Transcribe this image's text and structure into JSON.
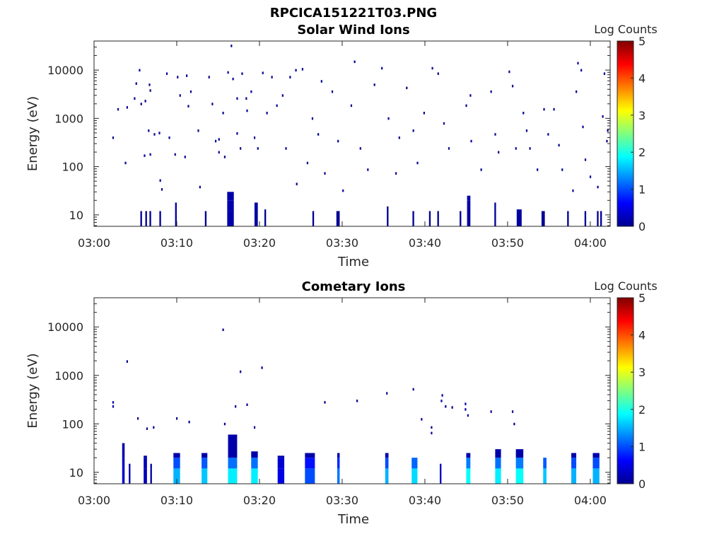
{
  "figure_title": "RPCICA151221T03.PNG",
  "chart_data": [
    {
      "type": "heatmap",
      "title": "Solar Wind Ions",
      "xlabel": "Time",
      "ylabel": "Energy (eV)",
      "colorbar_label": "Log Counts",
      "colorbar_ticks": [
        "0",
        "1",
        "2",
        "3",
        "4",
        "5"
      ],
      "clim": [
        0,
        5
      ],
      "colormap": "jet",
      "x_unit": "minutes after 03:00",
      "xlim": [
        0,
        62.4
      ],
      "ylim": [
        5.8,
        40000
      ],
      "yscale": "log",
      "xticks": [
        0,
        10,
        20,
        30,
        40,
        50,
        60
      ],
      "xtick_labels": [
        "03:00",
        "03:10",
        "03:20",
        "03:30",
        "03:40",
        "03:50",
        "04:00"
      ],
      "yticks": [
        10,
        100,
        1000,
        10000
      ],
      "ytick_labels": [
        "10",
        "100",
        "1000",
        "10000"
      ],
      "points_format": "[time_min, energy_eV, log_counts]",
      "points": [
        [
          2.3,
          400,
          0.1
        ],
        [
          2.9,
          1550,
          0.1
        ],
        [
          4.0,
          1700,
          0.1
        ],
        [
          3.8,
          120,
          0.1
        ],
        [
          4.9,
          2600,
          0.1
        ],
        [
          5.5,
          10000,
          0.1
        ],
        [
          5.1,
          5300,
          0.1
        ],
        [
          5.7,
          2000,
          0.1
        ],
        [
          6.2,
          2300,
          0.1
        ],
        [
          6.7,
          5000,
          0.1
        ],
        [
          6.8,
          3800,
          0.1
        ],
        [
          6.1,
          170,
          0.1
        ],
        [
          6.8,
          180,
          0.1
        ],
        [
          6.6,
          560,
          0.1
        ],
        [
          7.3,
          470,
          0.1
        ],
        [
          7.9,
          500,
          0.1
        ],
        [
          8.0,
          52,
          0.1
        ],
        [
          8.2,
          34,
          0.1
        ],
        [
          8.8,
          8500,
          0.1
        ],
        [
          9.1,
          400,
          0.1
        ],
        [
          10.1,
          7200,
          0.1
        ],
        [
          10.4,
          3000,
          0.1
        ],
        [
          9.8,
          180,
          0.1
        ],
        [
          11.0,
          160,
          0.1
        ],
        [
          11.2,
          7700,
          0.1
        ],
        [
          11.4,
          1800,
          0.1
        ],
        [
          11.7,
          3600,
          0.1
        ],
        [
          12.6,
          560,
          0.1
        ],
        [
          12.8,
          38,
          0.1
        ],
        [
          13.9,
          7200,
          0.1
        ],
        [
          14.3,
          2000,
          0.1
        ],
        [
          14.7,
          340,
          0.1
        ],
        [
          15.1,
          370,
          0.1
        ],
        [
          15.6,
          1300,
          0.1
        ],
        [
          15.1,
          200,
          0.1
        ],
        [
          15.8,
          160,
          0.1
        ],
        [
          16.2,
          9000,
          0.1
        ],
        [
          16.6,
          32000,
          0.1
        ],
        [
          16.8,
          6600,
          0.1
        ],
        [
          17.3,
          2600,
          0.1
        ],
        [
          17.3,
          490,
          0.1
        ],
        [
          17.7,
          240,
          0.1
        ],
        [
          17.9,
          8500,
          0.1
        ],
        [
          18.4,
          2600,
          0.1
        ],
        [
          18.5,
          1450,
          0.1
        ],
        [
          19.0,
          3600,
          0.1
        ],
        [
          19.4,
          400,
          0.1
        ],
        [
          19.8,
          240,
          0.1
        ],
        [
          20.4,
          8800,
          0.1
        ],
        [
          20.9,
          1300,
          0.1
        ],
        [
          21.5,
          7200,
          0.1
        ],
        [
          22.1,
          1850,
          0.1
        ],
        [
          22.8,
          3000,
          0.1
        ],
        [
          23.2,
          240,
          0.1
        ],
        [
          23.7,
          7200,
          0.1
        ],
        [
          24.4,
          10000,
          0.1
        ],
        [
          25.2,
          10500,
          0.1
        ],
        [
          24.5,
          44,
          0.1
        ],
        [
          25.8,
          120,
          0.1
        ],
        [
          26.4,
          1000,
          0.1
        ],
        [
          27.1,
          470,
          0.1
        ],
        [
          27.5,
          5900,
          0.1
        ],
        [
          27.9,
          73,
          0.1
        ],
        [
          28.8,
          3600,
          0.1
        ],
        [
          29.5,
          340,
          0.1
        ],
        [
          30.1,
          32,
          0.1
        ],
        [
          31.1,
          1850,
          0.1
        ],
        [
          31.5,
          15000,
          0.1
        ],
        [
          32.2,
          240,
          0.1
        ],
        [
          33.1,
          87,
          0.1
        ],
        [
          33.9,
          5000,
          0.1
        ],
        [
          34.8,
          11000,
          0.1
        ],
        [
          35.6,
          1000,
          0.1
        ],
        [
          36.5,
          73,
          0.1
        ],
        [
          36.9,
          400,
          0.1
        ],
        [
          37.8,
          4300,
          0.1
        ],
        [
          38.6,
          560,
          0.1
        ],
        [
          39.1,
          120,
          0.1
        ],
        [
          39.9,
          1300,
          0.1
        ],
        [
          40.9,
          11000,
          0.1
        ],
        [
          41.6,
          8500,
          0.1
        ],
        [
          42.3,
          790,
          0.1
        ],
        [
          42.9,
          240,
          0.1
        ],
        [
          45.0,
          1850,
          0.1
        ],
        [
          45.5,
          3000,
          0.1
        ],
        [
          45.6,
          340,
          0.1
        ],
        [
          46.8,
          87,
          0.1
        ],
        [
          48.0,
          3600,
          0.1
        ],
        [
          48.5,
          470,
          0.1
        ],
        [
          48.9,
          200,
          0.1
        ],
        [
          50.2,
          9300,
          0.1
        ],
        [
          50.6,
          4700,
          0.1
        ],
        [
          51.0,
          240,
          0.1
        ],
        [
          51.9,
          1300,
          0.1
        ],
        [
          52.3,
          560,
          0.1
        ],
        [
          52.7,
          240,
          0.1
        ],
        [
          53.6,
          87,
          0.1
        ],
        [
          54.4,
          1550,
          0.1
        ],
        [
          54.9,
          470,
          0.1
        ],
        [
          55.6,
          1550,
          0.1
        ],
        [
          56.2,
          280,
          0.1
        ],
        [
          56.6,
          87,
          0.1
        ],
        [
          57.9,
          32,
          0.1
        ],
        [
          58.5,
          14000,
          0.1
        ],
        [
          58.9,
          10000,
          0.1
        ],
        [
          58.3,
          3600,
          0.1
        ],
        [
          59.1,
          670,
          0.1
        ],
        [
          59.4,
          140,
          0.1
        ],
        [
          60.0,
          62,
          0.1
        ],
        [
          60.9,
          38,
          0.1
        ],
        [
          61.5,
          1100,
          0.1
        ],
        [
          61.7,
          8500,
          0.1
        ],
        [
          62.0,
          340,
          0.1
        ],
        [
          62.1,
          560,
          0.1
        ]
      ],
      "columns_format": "[t_start_min, t_end_min, top_energy_eV, max_log_counts]",
      "columns": [
        [
          5.6,
          5.8,
          12,
          0.1
        ],
        [
          6.2,
          6.4,
          12,
          0.1
        ],
        [
          6.7,
          6.9,
          12,
          0.1
        ],
        [
          7.9,
          8.1,
          12,
          0.1
        ],
        [
          9.8,
          10.0,
          18,
          0.15
        ],
        [
          13.4,
          13.6,
          12,
          0.1
        ],
        [
          16.1,
          16.9,
          30,
          0.2
        ],
        [
          19.4,
          19.8,
          18,
          0.15
        ],
        [
          20.6,
          20.8,
          13,
          0.1
        ],
        [
          26.4,
          26.6,
          12,
          0.1
        ],
        [
          29.3,
          29.7,
          12,
          0.1
        ],
        [
          35.4,
          35.6,
          15,
          0.1
        ],
        [
          38.5,
          38.7,
          12,
          0.1
        ],
        [
          40.5,
          40.7,
          12,
          0.1
        ],
        [
          41.5,
          41.7,
          12,
          0.1
        ],
        [
          44.2,
          44.4,
          12,
          0.1
        ],
        [
          45.1,
          45.5,
          25,
          0.15
        ],
        [
          48.4,
          48.6,
          18,
          0.1
        ],
        [
          51.1,
          51.7,
          13,
          0.15
        ],
        [
          54.1,
          54.5,
          12,
          0.1
        ],
        [
          57.2,
          57.4,
          12,
          0.1
        ],
        [
          59.3,
          59.5,
          12,
          0.1
        ],
        [
          60.8,
          61.0,
          12,
          0.1
        ],
        [
          61.2,
          61.4,
          12,
          0.1
        ]
      ]
    },
    {
      "type": "heatmap",
      "title": "Cometary Ions",
      "xlabel": "Time",
      "ylabel": "Energy (eV)",
      "colorbar_label": "Log Counts",
      "colorbar_ticks": [
        "0",
        "1",
        "2",
        "3",
        "4",
        "5"
      ],
      "clim": [
        0,
        5
      ],
      "colormap": "jet",
      "x_unit": "minutes after 03:00",
      "xlim": [
        0,
        62.4
      ],
      "ylim": [
        5.8,
        40000
      ],
      "yscale": "log",
      "xticks": [
        0,
        10,
        20,
        30,
        40,
        50,
        60
      ],
      "xtick_labels": [
        "03:00",
        "03:10",
        "03:20",
        "03:30",
        "03:40",
        "03:50",
        "04:00"
      ],
      "yticks": [
        10,
        100,
        1000,
        10000
      ],
      "ytick_labels": [
        "10",
        "100",
        "1000",
        "10000"
      ],
      "points_format": "[time_min, energy_eV, log_counts]",
      "points": [
        [
          2.3,
          280,
          0.2
        ],
        [
          2.3,
          230,
          0.2
        ],
        [
          4.0,
          1950,
          0.1
        ],
        [
          5.3,
          130,
          0.1
        ],
        [
          6.4,
          80,
          0.1
        ],
        [
          7.2,
          85,
          0.1
        ],
        [
          10.0,
          130,
          0.1
        ],
        [
          11.5,
          110,
          0.1
        ],
        [
          15.6,
          8800,
          0.1
        ],
        [
          17.7,
          1200,
          0.1
        ],
        [
          20.3,
          1450,
          0.1
        ],
        [
          18.5,
          250,
          0.1
        ],
        [
          17.1,
          230,
          0.1
        ],
        [
          27.9,
          280,
          0.1
        ],
        [
          31.8,
          300,
          0.1
        ],
        [
          35.4,
          430,
          0.1
        ],
        [
          38.6,
          520,
          0.1
        ],
        [
          39.6,
          125,
          0.1
        ],
        [
          42.1,
          390,
          0.2
        ],
        [
          42.0,
          300,
          0.2
        ],
        [
          42.5,
          230,
          0.1
        ],
        [
          44.9,
          200,
          0.2
        ],
        [
          44.9,
          260,
          0.2
        ],
        [
          48.0,
          180,
          0.1
        ],
        [
          50.6,
          180,
          0.1
        ],
        [
          50.8,
          100,
          0.1
        ],
        [
          15.8,
          100,
          0.1
        ],
        [
          19.4,
          85,
          0.1
        ],
        [
          40.8,
          85,
          0.1
        ],
        [
          40.8,
          65,
          0.1
        ],
        [
          43.3,
          220,
          0.1
        ],
        [
          45.2,
          150,
          0.2
        ]
      ],
      "columns_format": "[t_start_min, t_end_min, top_energy_eV, max_log_counts]",
      "columns": [
        [
          3.4,
          3.7,
          40,
          0.4
        ],
        [
          4.2,
          4.4,
          15,
          0.2
        ],
        [
          6.0,
          6.4,
          22,
          0.3
        ],
        [
          6.8,
          7.0,
          15,
          0.2
        ],
        [
          9.6,
          10.4,
          25,
          1.5
        ],
        [
          13.0,
          13.7,
          25,
          1.6
        ],
        [
          16.2,
          17.3,
          60,
          1.8
        ],
        [
          19.0,
          19.8,
          27,
          1.8
        ],
        [
          22.2,
          23.0,
          22,
          0.5
        ],
        [
          25.5,
          26.7,
          25,
          1.0
        ],
        [
          29.4,
          29.7,
          25,
          1.2
        ],
        [
          35.2,
          35.6,
          25,
          1.5
        ],
        [
          38.4,
          39.1,
          20,
          1.7
        ],
        [
          41.8,
          42.0,
          15,
          0.3
        ],
        [
          45.0,
          45.5,
          25,
          1.9
        ],
        [
          48.5,
          49.2,
          30,
          1.8
        ],
        [
          51.0,
          51.9,
          30,
          1.9
        ],
        [
          54.3,
          54.7,
          20,
          1.6
        ],
        [
          57.7,
          58.3,
          25,
          1.5
        ],
        [
          60.3,
          61.1,
          25,
          1.5
        ]
      ]
    }
  ]
}
